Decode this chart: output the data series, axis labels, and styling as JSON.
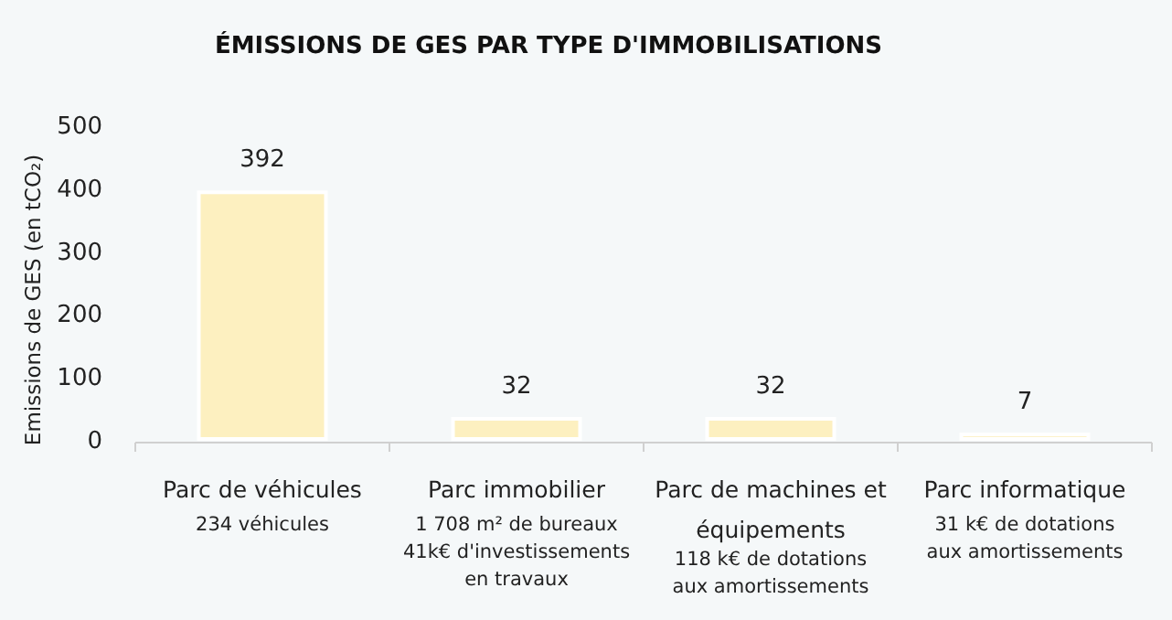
{
  "chart_data": {
    "type": "bar",
    "title": "ÉMISSIONS DE GES PAR TYPE D'IMMOBILISATIONS",
    "ylabel": "Emissions de GES (en tCO₂)",
    "categories": [
      "Parc de véhicules\n234 véhicules",
      "Parc immobilier\n1 708 m² de bureaux\n41k€ d'investissements\nen travaux",
      "Parc de machines et\néquipements\n118 k€ de dotations\naux amortissements",
      "Parc informatique\n31 k€ de dotations\naux amortissements"
    ],
    "values": [
      392,
      32,
      32,
      7
    ],
    "color": "#fdf0c0",
    "ylim": [
      0,
      500
    ],
    "yticks": [
      0,
      100,
      200,
      300,
      400,
      500
    ],
    "grid": false,
    "data_labels": true
  }
}
